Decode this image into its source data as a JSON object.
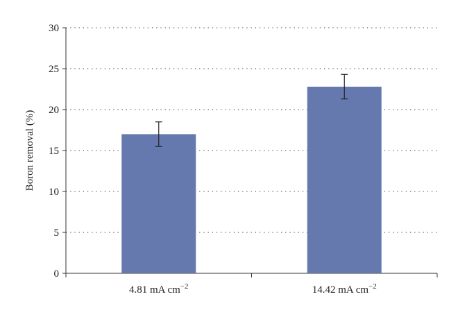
{
  "chart_data": {
    "type": "bar",
    "categories": [
      "4.81 mA cm⁻²",
      "14.42 mA cm⁻²"
    ],
    "category_parts": [
      {
        "base": "4.81 mA cm",
        "sup": "−2"
      },
      {
        "base": "14.42 mA cm",
        "sup": "−2"
      }
    ],
    "values": [
      17.0,
      22.8
    ],
    "error": [
      1.5,
      1.5
    ],
    "ylabel": "Boron removal (%)",
    "xlabel": "",
    "ylim": [
      0,
      30
    ],
    "yticks": [
      0,
      5,
      10,
      15,
      20,
      25,
      30
    ],
    "grid": "horizontal dotted",
    "bar_color": "#6579AE"
  }
}
